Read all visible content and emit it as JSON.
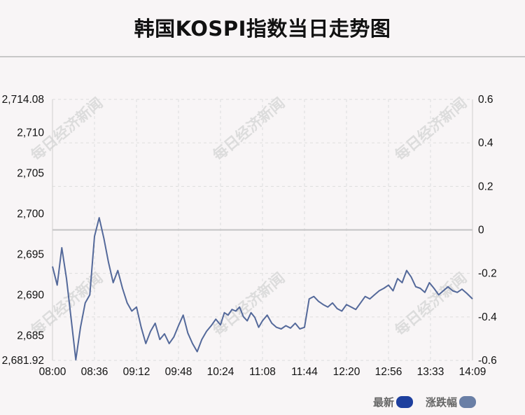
{
  "title": "韩国KOSPI指数当日走势图",
  "watermark": "每日经济新闻",
  "colors": {
    "line": "#54699a",
    "zero_line": "#c4c4c4",
    "grid": "#dddddd",
    "legend_latest": "#1e3f9e",
    "legend_change": "#6a7fa6"
  },
  "legend": [
    {
      "label": "最新",
      "color": "#1e3f9e"
    },
    {
      "label": "涨跌幅",
      "color": "#6a7fa6"
    }
  ],
  "chart_data": {
    "type": "line",
    "title": "韩国KOSPI指数当日走势图",
    "x_ticks": [
      "08:00",
      "08:36",
      "09:12",
      "09:48",
      "10:24",
      "11:08",
      "11:44",
      "12:20",
      "12:56",
      "13:33",
      "14:09"
    ],
    "y_left_ticks": [
      "2,714.08",
      "2,710",
      "2,705",
      "2,700",
      "2,695",
      "2,690",
      "2,685",
      "2,681.92"
    ],
    "y_left_range": [
      2681.92,
      2714.08
    ],
    "y_right_ticks": [
      "0.6",
      "0.4",
      "0.2",
      "0",
      "-0.2",
      "-0.4",
      "-0.6"
    ],
    "y_right_range": [
      -0.6,
      0.6
    ],
    "zero_reference": 2698.0,
    "grid": true,
    "series": [
      {
        "name": "最新",
        "x": [
          "08:00",
          "08:04",
          "08:08",
          "08:12",
          "08:16",
          "08:20",
          "08:24",
          "08:28",
          "08:32",
          "08:36",
          "08:40",
          "08:44",
          "08:48",
          "08:52",
          "08:56",
          "09:00",
          "09:04",
          "09:08",
          "09:12",
          "09:16",
          "09:20",
          "09:24",
          "09:28",
          "09:32",
          "09:36",
          "09:40",
          "09:44",
          "09:48",
          "09:52",
          "09:56",
          "10:00",
          "10:04",
          "10:08",
          "10:12",
          "10:16",
          "10:20",
          "10:24",
          "10:28",
          "10:32",
          "10:36",
          "10:40",
          "10:44",
          "10:48",
          "10:52",
          "10:56",
          "11:00",
          "11:04",
          "11:08",
          "11:12",
          "11:16",
          "11:20",
          "11:24",
          "11:28",
          "11:32",
          "11:36",
          "11:40",
          "11:44",
          "11:48",
          "11:52",
          "11:56",
          "12:00",
          "12:04",
          "12:08",
          "12:12",
          "12:16",
          "12:20",
          "12:24",
          "12:28",
          "12:32",
          "12:36",
          "12:40",
          "12:44",
          "12:48",
          "12:52",
          "12:56",
          "13:00",
          "13:04",
          "13:08",
          "13:12",
          "13:16",
          "13:20",
          "13:24",
          "13:28",
          "13:32",
          "13:36",
          "13:40",
          "13:44",
          "13:48",
          "13:52",
          "13:56",
          "14:00",
          "14:04",
          "14:09"
        ],
        "values": [
          2693.5,
          2691.2,
          2695.8,
          2692.0,
          2687.0,
          2682.0,
          2686.0,
          2689.0,
          2690.0,
          2697.2,
          2699.5,
          2697.0,
          2694.0,
          2691.5,
          2693.0,
          2690.8,
          2689.0,
          2688.0,
          2688.5,
          2686.0,
          2684.0,
          2685.5,
          2686.5,
          2684.5,
          2685.2,
          2684.0,
          2684.8,
          2686.2,
          2687.5,
          2685.3,
          2684.0,
          2683.0,
          2684.5,
          2685.5,
          2686.2,
          2687.0,
          2686.3,
          2687.8,
          2687.5,
          2688.2,
          2688.0,
          2688.5,
          2687.3,
          2686.8,
          2687.8,
          2687.2,
          2686.0,
          2686.8,
          2687.5,
          2686.5,
          2686.0,
          2685.8,
          2686.2,
          2685.9,
          2686.5,
          2685.8,
          2686.0,
          2689.5,
          2689.8,
          2689.2,
          2688.8,
          2688.5,
          2689.0,
          2688.3,
          2688.0,
          2688.8,
          2688.5,
          2688.2,
          2689.0,
          2689.8,
          2689.5,
          2690.0,
          2690.5,
          2690.8,
          2691.2,
          2690.5,
          2692.0,
          2691.5,
          2693.0,
          2692.2,
          2691.0,
          2690.8,
          2690.3,
          2691.5,
          2690.8,
          2690.0,
          2690.5,
          2691.0,
          2690.5,
          2690.3,
          2690.7,
          2690.2,
          2689.5
        ]
      }
    ]
  }
}
